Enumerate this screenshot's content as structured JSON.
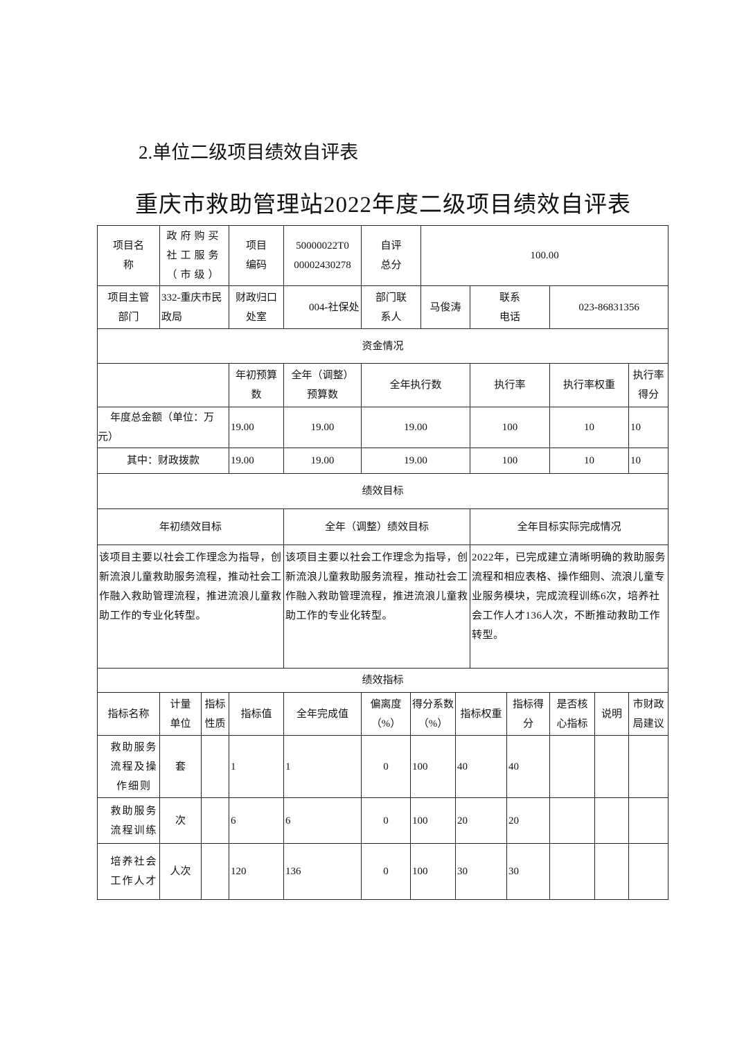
{
  "section_heading": "2.单位二级项目绩效自评表",
  "title": "重庆市救助管理站2022年度二级项目绩效自评表",
  "info": {
    "project_name_label": "项目名称",
    "project_name": "政府购买社工服务（市级）",
    "project_code_label": "项目编码",
    "project_code": "50000022T000002430278",
    "score_label": "自评总分",
    "score": "100.00",
    "dept_label": "项目主管部门",
    "dept": "332-重庆市民政局",
    "finance_label": "财政归口处室",
    "finance": "004-社保处",
    "contact_label": "部门联系人",
    "contact": "马俊涛",
    "phone_label": "联系电话",
    "phone": "023-86831356"
  },
  "funds": {
    "section": "资金情况",
    "headers": [
      "",
      "年初预算数",
      "全年（调整）预算数",
      "全年执行数",
      "执行率",
      "执行率权重",
      "执行率得分"
    ],
    "rows": [
      [
        "年度总金额（单位：万元）",
        "19.00",
        "19.00",
        "19.00",
        "100",
        "10",
        "10"
      ],
      [
        "其中：财政拨款",
        "19.00",
        "19.00",
        "19.00",
        "100",
        "10",
        "10"
      ]
    ]
  },
  "goals": {
    "section": "绩效目标",
    "headers": [
      "年初绩效目标",
      "全年（调整）绩效目标",
      "全年目标实际完成情况"
    ],
    "values": [
      "该项目主要以社会工作理念为指导，创新流浪儿童救助服务流程，推动社会工作融入救助管理流程，推进流浪儿童救助工作的专业化转型。",
      "该项目主要以社会工作理念为指导，创新流浪儿童救助服务流程，推动社会工作融入救助管理流程，推进流浪儿童救助工作的专业化转型。",
      "2022年，已完成建立清晰明确的救助服务流程和相应表格、操作细则、流浪儿童专业服务模块，完成流程训练6次，培养社会工作人才136人次，不断推动救助工作转型。"
    ]
  },
  "indicators": {
    "section": "绩效指标",
    "headers": [
      "指标名称",
      "计量单位",
      "指标性质",
      "指标值",
      "全年完成值",
      "偏离度（%）",
      "得分系数（%）",
      "指标权重",
      "指标得分",
      "是否核心指标",
      "说明",
      "市财政局建议"
    ],
    "rows": [
      [
        "救助服务流程及操作细则",
        "套",
        "",
        "1",
        "1",
        "0",
        "100",
        "40",
        "40",
        "",
        "",
        ""
      ],
      [
        "救助服务流程训练",
        "次",
        "",
        "6",
        "6",
        "0",
        "100",
        "20",
        "20",
        "",
        "",
        ""
      ],
      [
        "培养社会工作人才",
        "人次",
        "",
        "120",
        "136",
        "0",
        "100",
        "30",
        "30",
        "",
        "",
        ""
      ]
    ]
  }
}
